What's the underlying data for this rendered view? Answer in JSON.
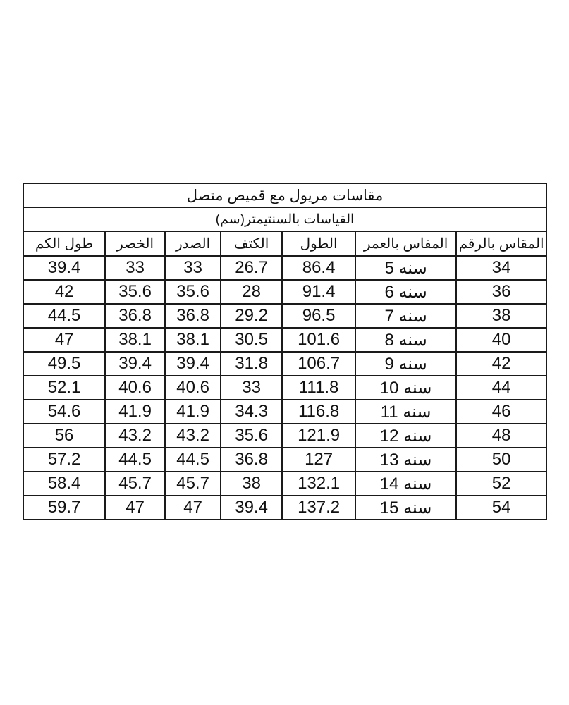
{
  "title": "مقاسات مريول مع قميص متصل",
  "subtitle": "القياسات بالسنتيمتر(سم)",
  "columns": [
    "المقاس بالرقم",
    "المقاس بالعمر",
    "الطول",
    "الكتف",
    "الصدر",
    "الخصر",
    "طول الكم"
  ],
  "rows": [
    [
      "34",
      "سنه 5",
      "86.4",
      "26.7",
      "33",
      "33",
      "39.4"
    ],
    [
      "36",
      "سنه 6",
      "91.4",
      "28",
      "35.6",
      "35.6",
      "42"
    ],
    [
      "38",
      "سنه 7",
      "96.5",
      "29.2",
      "36.8",
      "36.8",
      "44.5"
    ],
    [
      "40",
      "سنه 8",
      "101.6",
      "30.5",
      "38.1",
      "38.1",
      "47"
    ],
    [
      "42",
      "سنه 9",
      "106.7",
      "31.8",
      "39.4",
      "39.4",
      "49.5"
    ],
    [
      "44",
      "سنه 10",
      "111.8",
      "33",
      "40.6",
      "40.6",
      "52.1"
    ],
    [
      "46",
      "سنه 11",
      "116.8",
      "34.3",
      "41.9",
      "41.9",
      "54.6"
    ],
    [
      "48",
      "سنه 12",
      "121.9",
      "35.6",
      "43.2",
      "43.2",
      "56"
    ],
    [
      "50",
      "سنه 13",
      "127",
      "36.8",
      "44.5",
      "44.5",
      "57.2"
    ],
    [
      "52",
      "سنه 14",
      "132.1",
      "38",
      "45.7",
      "45.7",
      "58.4"
    ],
    [
      "54",
      "سنه 15",
      "137.2",
      "39.4",
      "47",
      "47",
      "59.7"
    ]
  ]
}
